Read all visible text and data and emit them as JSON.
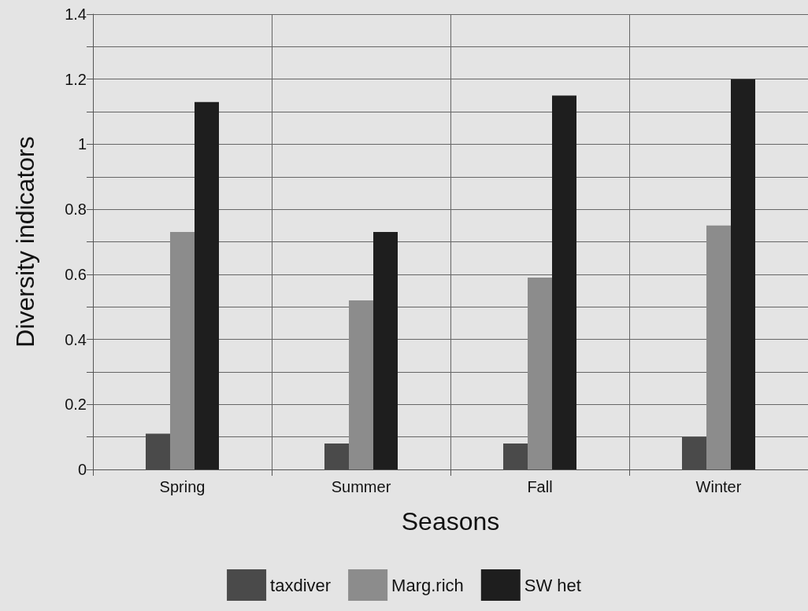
{
  "chart_data": {
    "type": "bar",
    "xlabel": "Seasons",
    "ylabel": "Diversity indicators",
    "categories": [
      "Spring",
      "Summer",
      "Fall",
      "Winter"
    ],
    "series": [
      {
        "name": "taxdiver",
        "color": "#4a4a4a",
        "values": [
          0.11,
          0.08,
          0.08,
          0.1
        ]
      },
      {
        "name": "Marg.rich",
        "color": "#8c8c8c",
        "values": [
          0.73,
          0.52,
          0.59,
          0.75
        ]
      },
      {
        "name": "SW het",
        "color": "#1e1e1e",
        "values": [
          1.13,
          0.73,
          1.15,
          1.2
        ]
      }
    ],
    "ylim": [
      0,
      1.4
    ],
    "yticks": [
      0,
      {
        "value": 0.1,
        "label": null
      },
      "0.2",
      {
        "value": 0.3,
        "label": null
      },
      "0.4",
      {
        "value": 0.5,
        "label": null
      },
      "0.6",
      {
        "value": 0.7,
        "label": null
      },
      "0.8",
      {
        "value": 0.9,
        "label": null
      },
      1,
      {
        "value": 1.1,
        "label": null
      },
      "1.2",
      {
        "value": 1.3,
        "label": null
      },
      "1.4"
    ],
    "grid": true,
    "legend": "bottom"
  }
}
